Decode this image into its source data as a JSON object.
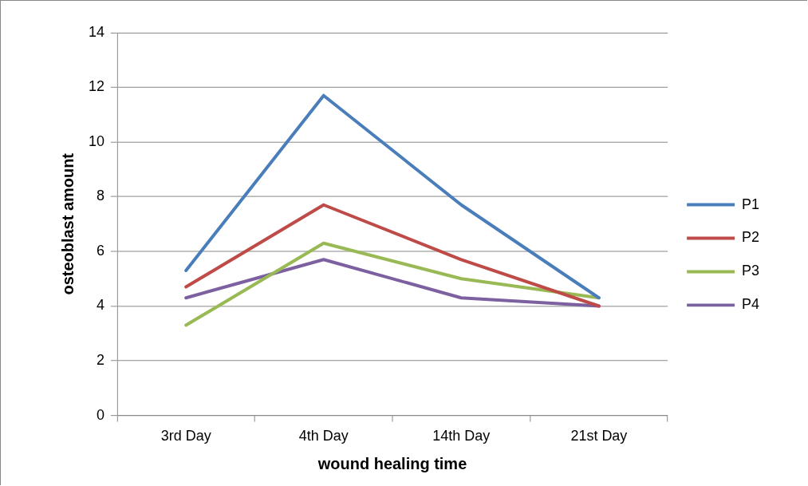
{
  "chart_data": {
    "type": "line",
    "xlabel": "wound healing time",
    "ylabel": "osteoblast amount",
    "categories": [
      "3rd Day",
      "4th Day",
      "14th Day",
      "21st Day"
    ],
    "series": [
      {
        "name": "P1",
        "color": "#4a7ebb",
        "values": [
          5.3,
          11.7,
          7.7,
          4.3
        ]
      },
      {
        "name": "P2",
        "color": "#be4b48",
        "values": [
          4.7,
          7.7,
          5.7,
          4.0
        ]
      },
      {
        "name": "P3",
        "color": "#98b954",
        "values": [
          3.3,
          6.3,
          5.0,
          4.3
        ]
      },
      {
        "name": "P4",
        "color": "#7d60a0",
        "values": [
          4.3,
          5.7,
          4.3,
          4.0
        ]
      }
    ],
    "ylim": [
      0,
      14
    ],
    "yticks": [
      0,
      2,
      4,
      6,
      8,
      10,
      12,
      14
    ],
    "grid": "y",
    "legend": "right",
    "marker": "none",
    "line_style": "solid"
  }
}
